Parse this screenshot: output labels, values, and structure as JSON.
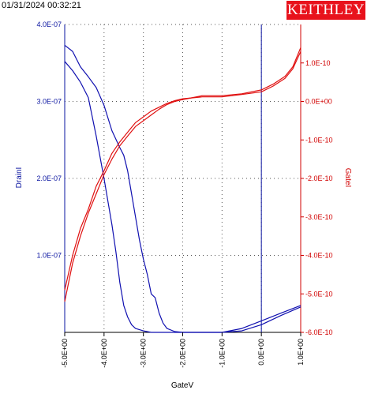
{
  "header": {
    "timestamp": "01/31/2024 00:32:21",
    "logo_text": "KEITHLEY"
  },
  "colors": {
    "left_axis": "#0a14a0",
    "right_axis": "#d10000",
    "series_drain": "#1010b0",
    "series_gate": "#e01010",
    "logo_bg": "#e8121c"
  },
  "chart_data": {
    "type": "line",
    "xlabel": "GateV",
    "ylabel_left": "DrainI",
    "ylabel_right": "GateI",
    "xlim": [
      -5.0,
      1.0
    ],
    "ylim_left": [
      0,
      4e-07
    ],
    "ylim_right": [
      -6e-10,
      2e-10
    ],
    "x_ticks": [
      "-5.0E+00",
      "-4.0E+00",
      "-3.0E+00",
      "-2.0E+00",
      "-1.0E+00",
      "0.0E+00",
      "1.0E+00"
    ],
    "left_ticks": [
      "4.0E-07",
      "3.0E-07",
      "2.0E-07",
      "1.0E-07"
    ],
    "right_ticks": [
      "1.0E-10",
      "0.0E+00",
      "-1.0E-10",
      "-2.0E-10",
      "-3.0E-10",
      "-4.0E-10",
      "-5.0E-10",
      "-6.0E-10"
    ],
    "grid": true,
    "vertical_marker_x": 0.0,
    "series": [
      {
        "axis": "left",
        "x": [
          -5.0,
          -4.8,
          -4.6,
          -4.4,
          -4.2,
          -4.0,
          -3.8,
          -3.6,
          -3.5,
          -3.4,
          -3.3,
          -3.2,
          -3.1,
          -3.0,
          -2.9,
          -2.8,
          -2.7,
          -2.6,
          -2.5,
          -2.4,
          -2.2,
          -2.0,
          -1.5,
          -1.0,
          -0.5,
          0.0,
          0.5,
          1.0
        ],
        "y": [
          3.73e-07,
          3.65e-07,
          3.45e-07,
          3.32e-07,
          3.18e-07,
          2.95e-07,
          2.62e-07,
          2.4e-07,
          2.3e-07,
          2.1e-07,
          1.8e-07,
          1.5e-07,
          1.2e-07,
          9.5e-08,
          7.5e-08,
          5e-08,
          4.5e-08,
          2.5e-08,
          1.2e-08,
          5e-09,
          1e-09,
          0.0,
          0.0,
          0.0,
          5e-09,
          1.5e-08,
          2.5e-08,
          3.5e-08
        ]
      },
      {
        "axis": "left",
        "x": [
          -5.0,
          -4.8,
          -4.6,
          -4.4,
          -4.2,
          -4.0,
          -3.9,
          -3.8,
          -3.7,
          -3.6,
          -3.5,
          -3.4,
          -3.3,
          -3.2,
          -3.0,
          -2.8,
          -2.5,
          -2.0,
          -1.5,
          -1.0,
          -0.5,
          0.0,
          0.5,
          1.0
        ],
        "y": [
          3.52e-07,
          3.4e-07,
          3.25e-07,
          3.05e-07,
          2.55e-07,
          2e-07,
          1.7e-07,
          1.4e-07,
          1.05e-07,
          6.5e-08,
          3.5e-08,
          2e-08,
          1e-08,
          5e-09,
          2e-09,
          0.0,
          0.0,
          0.0,
          0.0,
          0.0,
          2e-09,
          1e-08,
          2.2e-08,
          3.3e-08
        ]
      },
      {
        "axis": "right",
        "x": [
          -5.0,
          -4.8,
          -4.6,
          -4.4,
          -4.2,
          -4.0,
          -3.8,
          -3.6,
          -3.4,
          -3.2,
          -3.0,
          -2.8,
          -2.6,
          -2.4,
          -2.2,
          -2.0,
          -1.5,
          -1.0,
          -0.5,
          0.0,
          0.3,
          0.6,
          0.8,
          1.0
        ],
        "y": [
          -5.2e-10,
          -4.2e-10,
          -3.5e-10,
          -2.9e-10,
          -2.4e-10,
          -1.9e-10,
          -1.5e-10,
          -1.15e-10,
          -9e-11,
          -6.5e-11,
          -5e-11,
          -3.5e-11,
          -2e-11,
          -8e-12,
          0.0,
          5e-12,
          1.5e-11,
          1.5e-11,
          2e-11,
          3e-11,
          4.5e-11,
          6.5e-11,
          9e-11,
          1.4e-10
        ]
      },
      {
        "axis": "right",
        "x": [
          -5.0,
          -4.8,
          -4.6,
          -4.4,
          -4.2,
          -4.0,
          -3.8,
          -3.6,
          -3.4,
          -3.2,
          -3.0,
          -2.8,
          -2.6,
          -2.4,
          -2.2,
          -2.0,
          -1.5,
          -1.0,
          -0.5,
          0.0,
          0.3,
          0.6,
          0.8,
          1.0
        ],
        "y": [
          -4.9e-10,
          -4e-10,
          -3.3e-10,
          -2.8e-10,
          -2.2e-10,
          -1.8e-10,
          -1.35e-10,
          -1.05e-10,
          -8e-11,
          -5.5e-11,
          -4e-11,
          -2.5e-11,
          -1.5e-11,
          -5e-12,
          2e-12,
          7e-12,
          1.2e-11,
          1.2e-11,
          1.8e-11,
          2.5e-11,
          4e-11,
          6e-11,
          8.5e-11,
          1.3e-10
        ]
      }
    ]
  }
}
